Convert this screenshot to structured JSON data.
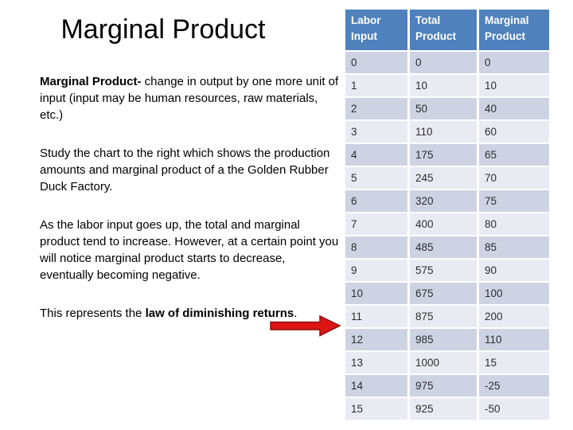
{
  "slide_title": "Marginal Product",
  "body": {
    "p1_bold": "Marginal Product-",
    "p1_text": " change in output by one more unit of input (input may be human resources, raw materials, etc.)",
    "p2_text": "Study the chart to the right which shows the production amounts and marginal product of a the Golden Rubber Duck Factory.",
    "p3_text": "As the labor input goes up, the total and marginal product tend to increase. However, at a certain point you will notice marginal product starts to decrease, eventually becoming negative.",
    "p4_prefix": "This represents the ",
    "p4_bold": "law of diminishing returns",
    "p4_suffix": "."
  },
  "icons": {
    "arrow": "red-right-block-arrow"
  },
  "table": {
    "headers": [
      "Labor Input",
      "Total Product",
      "Marginal Product"
    ],
    "rows": [
      [
        "0",
        "0",
        "0"
      ],
      [
        "1",
        "10",
        "10"
      ],
      [
        "2",
        "50",
        "40"
      ],
      [
        "3",
        "110",
        "60"
      ],
      [
        "4",
        "175",
        "65"
      ],
      [
        "5",
        "245",
        "70"
      ],
      [
        "6",
        "320",
        "75"
      ],
      [
        "7",
        "400",
        "80"
      ],
      [
        "8",
        "485",
        "85"
      ],
      [
        "9",
        "575",
        "90"
      ],
      [
        "10",
        "675",
        "100"
      ],
      [
        "11",
        "875",
        "200"
      ],
      [
        "12",
        "985",
        "110"
      ],
      [
        "13",
        "1000",
        "15"
      ],
      [
        "14",
        "975",
        "-25"
      ],
      [
        "15",
        "925",
        "-50"
      ]
    ]
  },
  "colors": {
    "text_color": "#000000",
    "header_bg": "#4F81BD",
    "header_text": "#FFFFFF",
    "band_dark": "#CDD3E3",
    "band_light": "#E9EBF3",
    "cell_text": "#2E2E2E",
    "arrow_fill": "#DD1414",
    "arrow_stroke": "#8B1010"
  }
}
